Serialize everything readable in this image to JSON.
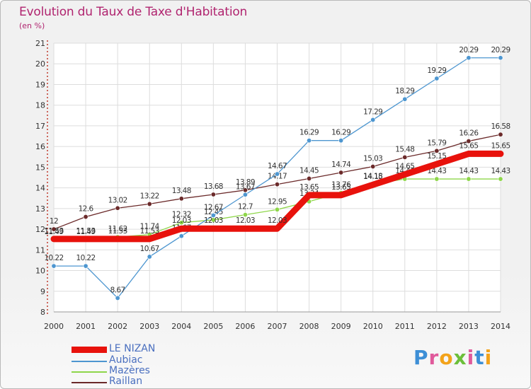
{
  "chart_title": "Evolution du Taux de Taxe d'Habitation",
  "unit_label": "(en %)",
  "brand": "Proxiti",
  "chart_data": {
    "type": "line",
    "title": "Evolution du Taux de Taxe d'Habitation",
    "ylabel": "(en %)",
    "xlabel": "",
    "x": [
      2000,
      2001,
      2002,
      2003,
      2004,
      2005,
      2006,
      2007,
      2008,
      2009,
      2010,
      2011,
      2012,
      2013,
      2014
    ],
    "ylim": [
      8,
      21
    ],
    "yticks": [
      8,
      9,
      10,
      11,
      12,
      13,
      14,
      15,
      16,
      17,
      18,
      19,
      20,
      21
    ],
    "grid": true,
    "legend": "bottom-left",
    "series": [
      {
        "name": "Raillan",
        "color": "#6b2a2a",
        "values": [
          12,
          12.6,
          13.02,
          13.22,
          13.48,
          13.68,
          13.89,
          14.17,
          14.45,
          14.74,
          15.03,
          15.48,
          15.79,
          16.26,
          16.58
        ]
      },
      {
        "name": "Mazères",
        "color": "#8ed64a",
        "values": [
          11.49,
          11.49,
          11.62,
          11.74,
          12.32,
          12.45,
          12.7,
          12.95,
          13.34,
          13.76,
          14.18,
          14.43,
          14.43,
          14.43,
          14.43
        ]
      },
      {
        "name": "Aubiac",
        "color": "#4d96d0",
        "values": [
          10.22,
          10.22,
          8.67,
          10.67,
          11.67,
          12.67,
          13.67,
          14.67,
          16.29,
          16.29,
          17.29,
          18.29,
          19.29,
          20.29,
          20.29
        ]
      },
      {
        "name": "LE NIZAN",
        "color": "#e8120c",
        "values": [
          11.53,
          11.53,
          11.53,
          11.53,
          12.03,
          12.03,
          12.03,
          12.03,
          13.65,
          13.65,
          14.15,
          14.65,
          15.15,
          15.65,
          15.65
        ]
      }
    ]
  },
  "legend_items": [
    {
      "label": "LE NIZAN",
      "color": "#e8120c"
    },
    {
      "label": "Aubiac",
      "color": "#4d96d0"
    },
    {
      "label": "Mazères",
      "color": "#8ed64a"
    },
    {
      "label": "Raillan",
      "color": "#6b2a2a"
    }
  ]
}
